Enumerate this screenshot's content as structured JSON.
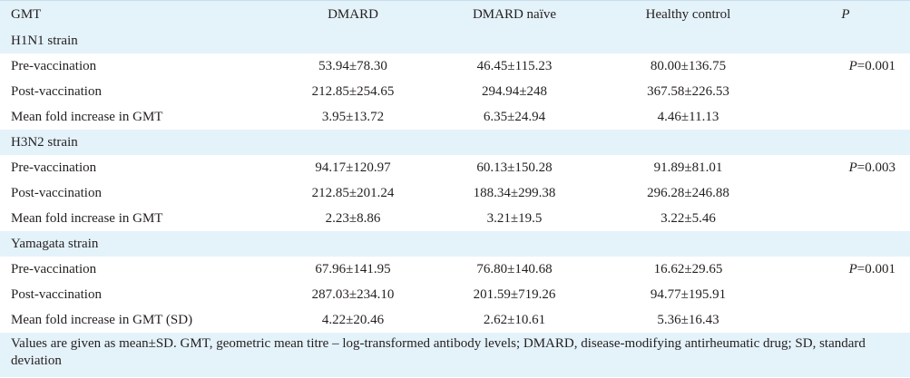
{
  "header": {
    "col0": "GMT",
    "col1": "DMARD",
    "col2": "DMARD naïve",
    "col3": "Healthy control",
    "col4": "P"
  },
  "sections": [
    {
      "title": "H1N1 strain",
      "rows": [
        {
          "label": "Pre-vaccination",
          "dmard": "53.94±78.30",
          "naive": "46.45±115.23",
          "healthy": "80.00±136.75",
          "p_prefix": "P",
          "p_value": "=0.001"
        },
        {
          "label": "Post-vaccination",
          "dmard": "212.85±254.65",
          "naive": "294.94±248",
          "healthy": "367.58±226.53",
          "p_prefix": "",
          "p_value": ""
        },
        {
          "label": "Mean fold increase in GMT",
          "dmard": "3.95±13.72",
          "naive": "6.35±24.94",
          "healthy": "4.46±11.13",
          "p_prefix": "",
          "p_value": ""
        }
      ]
    },
    {
      "title": "H3N2 strain",
      "rows": [
        {
          "label": "Pre-vaccination",
          "dmard": "94.17±120.97",
          "naive": "60.13±150.28",
          "healthy": "91.89±81.01",
          "p_prefix": "P",
          "p_value": "=0.003"
        },
        {
          "label": "Post-vaccination",
          "dmard": "212.85±201.24",
          "naive": "188.34±299.38",
          "healthy": "296.28±246.88",
          "p_prefix": "",
          "p_value": ""
        },
        {
          "label": "Mean fold increase in GMT",
          "dmard": "2.23±8.86",
          "naive": "3.21±19.5",
          "healthy": "3.22±5.46",
          "p_prefix": "",
          "p_value": ""
        }
      ]
    },
    {
      "title": "Yamagata strain",
      "rows": [
        {
          "label": "Pre-vaccination",
          "dmard": "67.96±141.95",
          "naive": "76.80±140.68",
          "healthy": "16.62±29.65",
          "p_prefix": "P",
          "p_value": "=0.001"
        },
        {
          "label": "Post-vaccination",
          "dmard": "287.03±234.10",
          "naive": "201.59±719.26",
          "healthy": "94.77±195.91",
          "p_prefix": "",
          "p_value": ""
        },
        {
          "label": "Mean fold increase in GMT (SD)",
          "dmard": "4.22±20.46",
          "naive": "2.62±10.61",
          "healthy": "5.36±16.43",
          "p_prefix": "",
          "p_value": ""
        }
      ]
    }
  ],
  "footnote": "Values are given as mean±SD. GMT, geometric mean titre – log-transformed antibody levels; DMARD, disease-modifying antirheumatic drug; SD, standard deviation"
}
